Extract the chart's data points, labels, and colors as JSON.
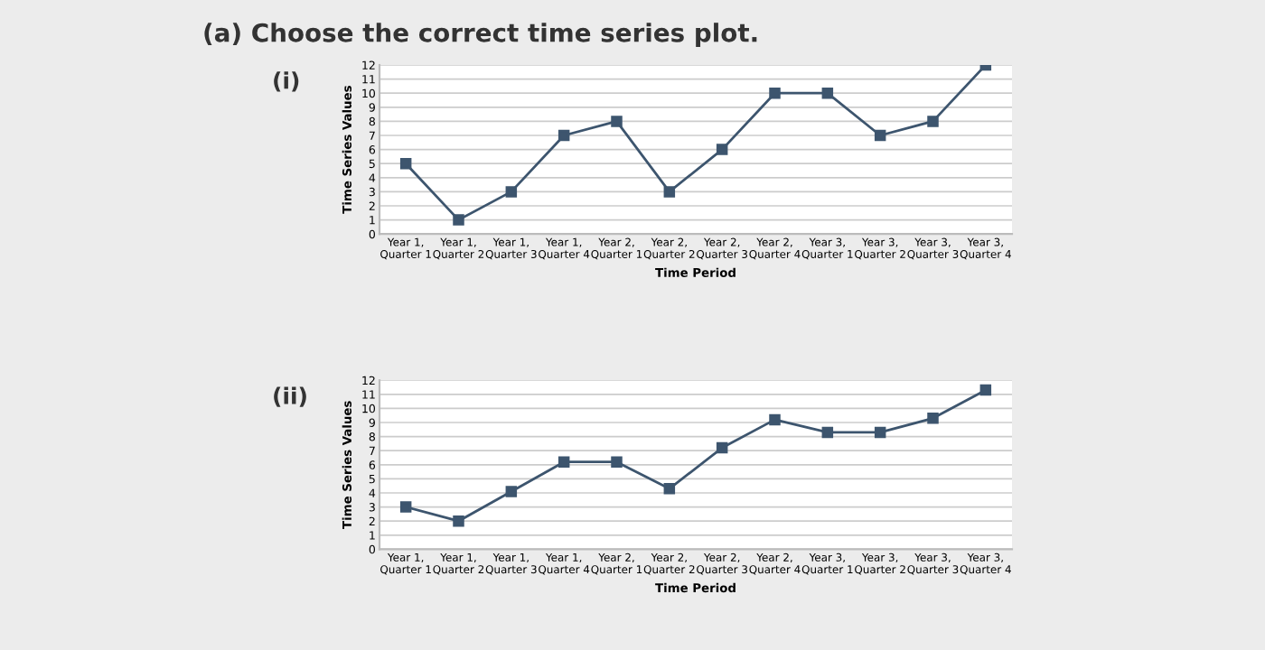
{
  "chart_data": [
    {
      "type": "line",
      "title": "(a) Choose the correct time series plot.",
      "subtitle": "(i)",
      "xlabel": "Time Period",
      "ylabel": "Time Series Values",
      "categories": [
        "Year 1,\nQuarter 1",
        "Year 1,\nQuarter 2",
        "Year 1,\nQuarter 3",
        "Year 1,\nQuarter 4",
        "Year 2,\nQuarter 1",
        "Year 2,\nQuarter 2",
        "Year 2,\nQuarter 3",
        "Year 2,\nQuarter 4",
        "Year 3,\nQuarter 1",
        "Year 3,\nQuarter 2",
        "Year 3,\nQuarter 3",
        "Year 3,\nQuarter 4"
      ],
      "series": [
        {
          "color": "#3d556e",
          "values": [
            5,
            1,
            3,
            7,
            8,
            3,
            6,
            10,
            10,
            7,
            8,
            12
          ]
        }
      ],
      "ylim": [
        0,
        12
      ],
      "yticks": [
        0,
        1,
        2,
        3,
        4,
        5,
        6,
        7,
        8,
        9,
        10,
        11,
        12
      ],
      "grid": "y",
      "marker": "square",
      "line_style": "solid",
      "legend": false
    },
    {
      "type": "line",
      "subtitle": "(ii)",
      "xlabel": "Time Period",
      "ylabel": "Time Series Values",
      "categories": [
        "Year 1,\nQuarter 1",
        "Year 1,\nQuarter 2",
        "Year 1,\nQuarter 3",
        "Year 1,\nQuarter 4",
        "Year 2,\nQuarter 1",
        "Year 2,\nQuarter 2",
        "Year 2,\nQuarter 3",
        "Year 2,\nQuarter 4",
        "Year 3,\nQuarter 1",
        "Year 3,\nQuarter 2",
        "Year 3,\nQuarter 3",
        "Year 3,\nQuarter 4"
      ],
      "series": [
        {
          "color": "#3d556e",
          "values": [
            3,
            2,
            4.1,
            6.2,
            6.2,
            4.3,
            7.2,
            9.2,
            8.3,
            8.3,
            9.3,
            11.3
          ]
        }
      ],
      "ylim": [
        0,
        12
      ],
      "yticks": [
        0,
        1,
        2,
        3,
        4,
        5,
        6,
        7,
        8,
        9,
        10,
        11,
        12
      ],
      "grid": "y",
      "marker": "square",
      "line_style": "solid",
      "legend": false
    }
  ]
}
